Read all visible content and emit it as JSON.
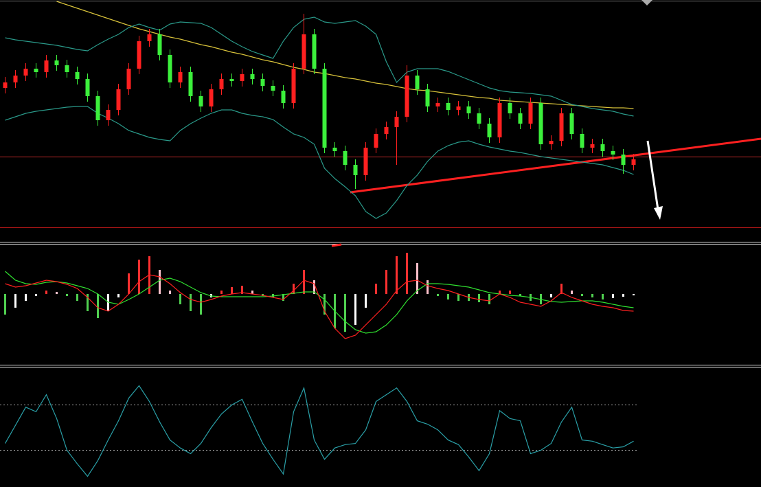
{
  "chart_data": [
    {
      "type": "candlestick",
      "ylim": [
        0,
        340
      ],
      "up_color": "#ff2020",
      "down_color": "#3cf03c",
      "open": [
        212,
        220,
        230,
        240,
        235,
        252,
        245,
        235,
        225,
        200,
        165,
        180,
        210,
        240,
        280,
        290,
        260,
        220,
        235,
        200,
        185,
        210,
        225,
        222,
        232,
        225,
        215,
        208,
        190,
        240,
        290,
        240,
        125,
        120,
        100,
        85,
        125,
        145,
        155,
        170,
        230,
        210,
        185,
        190,
        180,
        185,
        175,
        160,
        140,
        190,
        175,
        160,
        190,
        130,
        135,
        175,
        145,
        125,
        130,
        120,
        115,
        100
      ],
      "high": [
        228,
        238,
        248,
        248,
        260,
        260,
        253,
        243,
        233,
        208,
        188,
        218,
        248,
        288,
        298,
        298,
        268,
        243,
        243,
        208,
        218,
        233,
        233,
        240,
        240,
        233,
        223,
        216,
        248,
        320,
        298,
        248,
        133,
        128,
        108,
        133,
        153,
        163,
        178,
        245,
        238,
        218,
        198,
        198,
        193,
        193,
        183,
        168,
        198,
        198,
        183,
        198,
        198,
        143,
        183,
        183,
        153,
        138,
        138,
        128,
        123,
        116
      ],
      "low": [
        204,
        212,
        222,
        227,
        227,
        237,
        227,
        217,
        192,
        157,
        157,
        172,
        202,
        232,
        272,
        252,
        212,
        212,
        192,
        177,
        177,
        202,
        214,
        214,
        217,
        207,
        200,
        182,
        182,
        232,
        232,
        117,
        112,
        92,
        65,
        77,
        117,
        137,
        100,
        162,
        202,
        177,
        177,
        172,
        172,
        167,
        152,
        132,
        132,
        167,
        152,
        152,
        122,
        122,
        127,
        137,
        117,
        117,
        112,
        107,
        87,
        92
      ],
      "close": [
        220,
        230,
        240,
        235,
        252,
        245,
        235,
        225,
        200,
        165,
        180,
        210,
        240,
        280,
        290,
        260,
        220,
        235,
        200,
        185,
        210,
        225,
        222,
        232,
        225,
        215,
        208,
        190,
        240,
        290,
        240,
        125,
        120,
        100,
        85,
        125,
        145,
        155,
        170,
        230,
        210,
        185,
        190,
        180,
        185,
        175,
        160,
        140,
        190,
        175,
        160,
        190,
        130,
        135,
        175,
        145,
        125,
        130,
        120,
        115,
        100,
        108
      ],
      "series": [
        {
          "color": "#d8c23a",
          "values": [
            null,
            null,
            null,
            null,
            null,
            338,
            333,
            328,
            323,
            318,
            313,
            308,
            303,
            298,
            294,
            290,
            286,
            283,
            279,
            275,
            272,
            268,
            264,
            261,
            257,
            253,
            250,
            246,
            242,
            239,
            235,
            233,
            230,
            227,
            225,
            222,
            219,
            217,
            214,
            211,
            209,
            208,
            206,
            204,
            202,
            200,
            198,
            197,
            194,
            193,
            192,
            191,
            190,
            189,
            188,
            187,
            186,
            185,
            184,
            183,
            183,
            182
          ]
        },
        {
          "color": "#2a9a8a",
          "values": [
            285,
            282,
            280,
            278,
            276,
            274,
            271,
            268,
            266,
            275,
            283,
            290,
            300,
            305,
            300,
            296,
            305,
            308,
            307,
            306,
            300,
            290,
            280,
            272,
            265,
            260,
            255,
            280,
            300,
            312,
            315,
            308,
            306,
            308,
            310,
            302,
            290,
            250,
            220,
            235,
            240,
            240,
            240,
            236,
            230,
            224,
            218,
            212,
            208,
            206,
            205,
            204,
            202,
            200,
            194,
            188,
            185,
            182,
            180,
            178,
            174,
            171
          ]
        },
        {
          "color": "#2a9a8a",
          "values": [
            165,
            170,
            175,
            178,
            180,
            182,
            184,
            185,
            185,
            175,
            168,
            160,
            150,
            145,
            140,
            137,
            135,
            150,
            160,
            168,
            175,
            180,
            180,
            175,
            172,
            170,
            166,
            155,
            145,
            140,
            130,
            95,
            80,
            68,
            55,
            32,
            22,
            30,
            48,
            70,
            85,
            105,
            120,
            128,
            133,
            135,
            130,
            126,
            123,
            120,
            118,
            115,
            112,
            110,
            108,
            106,
            104,
            102,
            100,
            96,
            92,
            86
          ]
        }
      ]
    },
    {
      "type": "bar",
      "ylim": [
        -100,
        70
      ],
      "up_color": "#ff3030",
      "up_fade": "#ffc0cb",
      "down_color": "#50d050",
      "down_fade": "#ffffff",
      "values": [
        -30,
        -20,
        -10,
        -3,
        5,
        3,
        -3,
        -10,
        -25,
        -35,
        -25,
        -5,
        30,
        50,
        55,
        35,
        5,
        -15,
        -25,
        -30,
        -5,
        5,
        10,
        12,
        5,
        -3,
        -5,
        -10,
        15,
        35,
        20,
        -30,
        -50,
        -55,
        -45,
        -20,
        15,
        35,
        55,
        60,
        45,
        20,
        -3,
        -8,
        -10,
        -10,
        -12,
        -15,
        5,
        5,
        -3,
        -10,
        -15,
        -5,
        15,
        5,
        -3,
        -5,
        -8,
        -6,
        -4,
        -2
      ],
      "series": [
        {
          "color": "#30e030",
          "values": [
            33,
            20,
            15,
            14,
            17,
            18,
            16,
            12,
            8,
            0,
            -12,
            -15,
            -8,
            0,
            10,
            20,
            23,
            18,
            10,
            2,
            -3,
            -4,
            -4,
            -4,
            -4,
            -4,
            -3,
            -1,
            1,
            3,
            3,
            -8,
            -25,
            -40,
            -52,
            -57,
            -55,
            -45,
            -30,
            -10,
            5,
            15,
            15,
            14,
            12,
            10,
            6,
            2,
            0,
            -2,
            -3,
            -5,
            -8,
            -11,
            -12,
            -11,
            -10,
            -10,
            -12,
            -15,
            -18,
            -20
          ]
        },
        {
          "color": "#ff2020",
          "values": [
            15,
            10,
            12,
            16,
            20,
            18,
            14,
            8,
            -5,
            -20,
            -25,
            -15,
            0,
            18,
            28,
            25,
            15,
            2,
            -8,
            -12,
            -8,
            -3,
            0,
            2,
            0,
            -2,
            -5,
            -8,
            5,
            20,
            15,
            -25,
            -50,
            -65,
            -60,
            -45,
            -30,
            -15,
            5,
            18,
            20,
            12,
            8,
            5,
            0,
            -5,
            -8,
            -10,
            0,
            -5,
            -12,
            -15,
            -18,
            -10,
            2,
            -5,
            -10,
            -15,
            -18,
            -20,
            -24,
            -25
          ]
        }
      ]
    },
    {
      "type": "line",
      "ylim": [
        0,
        100
      ],
      "levels": [
        30,
        70
      ],
      "series": [
        {
          "color": "#2aa0a8",
          "values": [
            36,
            52,
            68,
            64,
            79,
            58,
            30,
            18,
            7,
            21,
            39,
            56,
            76,
            87,
            73,
            55,
            39,
            32,
            27,
            36,
            50,
            62,
            70,
            75,
            55,
            36,
            22,
            9,
            64,
            85,
            39,
            22,
            32,
            35,
            36,
            48,
            73,
            79,
            85,
            73,
            56,
            53,
            48,
            39,
            35,
            24,
            12,
            27,
            65,
            58,
            56,
            27,
            30,
            36,
            55,
            68,
            39,
            38,
            35,
            32,
            33,
            38
          ]
        }
      ]
    }
  ]
}
